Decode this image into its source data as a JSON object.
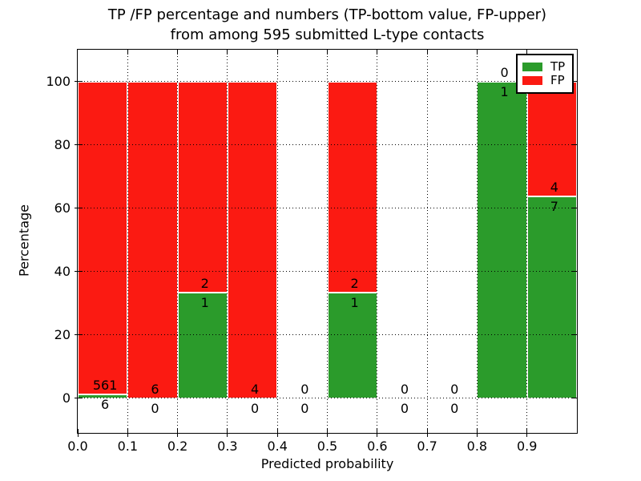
{
  "colors": {
    "tp_green": "#2b9b2b",
    "fp_red": "#fb1a12",
    "bar_edge": "#ffffff",
    "axis": "#000000",
    "grid": "#000000",
    "background": "#ffffff",
    "text": "#000000"
  },
  "chart_data": {
    "type": "bar",
    "stacked": true,
    "title": "TP /FP percentage and numbers (TP-bottom value, FP-upper)\nfrom among 595 submitted L-type contacts",
    "title_lines": [
      "TP /FP percentage and numbers (TP-bottom value, FP-upper)",
      "from among 595 submitted L-type contacts"
    ],
    "xlabel": "Predicted probability",
    "ylabel": "Percentage",
    "xlim": [
      0.0,
      1.0
    ],
    "ylim": [
      -11,
      110
    ],
    "x_tick_values": [
      0.0,
      0.1,
      0.2,
      0.3,
      0.4,
      0.5,
      0.6,
      0.7,
      0.8,
      0.9
    ],
    "x_tick_labels": [
      "0.0",
      "0.1",
      "0.2",
      "0.3",
      "0.4",
      "0.5",
      "0.6",
      "0.7",
      "0.8",
      "0.9"
    ],
    "y_ticks": [
      0,
      20,
      40,
      60,
      80,
      100
    ],
    "y_tick_labels": [
      "0",
      "20",
      "40",
      "60",
      "80",
      "100"
    ],
    "grid": {
      "style": "dotted",
      "color": "#000000",
      "drawn_over_bars": true
    },
    "legend": {
      "position": "upper-right",
      "entries": [
        {
          "label": "TP",
          "color": "#2b9b2b"
        },
        {
          "label": "FP",
          "color": "#fb1a12"
        }
      ]
    },
    "categories": [
      "0.0-0.1",
      "0.1-0.2",
      "0.2-0.3",
      "0.3-0.4",
      "0.4-0.5",
      "0.5-0.6",
      "0.6-0.7",
      "0.7-0.8",
      "0.8-0.9",
      "0.9-1.0"
    ],
    "bins": [
      {
        "x0": 0.0,
        "x1": 0.1,
        "tp": 6,
        "fp": 561,
        "tp_pct": 1.06,
        "fp_pct": 98.94
      },
      {
        "x0": 0.1,
        "x1": 0.2,
        "tp": 0,
        "fp": 6,
        "tp_pct": 0,
        "fp_pct": 100
      },
      {
        "x0": 0.2,
        "x1": 0.3,
        "tp": 1,
        "fp": 2,
        "tp_pct": 33.33,
        "fp_pct": 66.67
      },
      {
        "x0": 0.3,
        "x1": 0.4,
        "tp": 0,
        "fp": 4,
        "tp_pct": 0,
        "fp_pct": 100
      },
      {
        "x0": 0.4,
        "x1": 0.5,
        "tp": 0,
        "fp": 0,
        "tp_pct": 0,
        "fp_pct": 0
      },
      {
        "x0": 0.5,
        "x1": 0.6,
        "tp": 1,
        "fp": 2,
        "tp_pct": 33.33,
        "fp_pct": 66.67
      },
      {
        "x0": 0.6,
        "x1": 0.7,
        "tp": 0,
        "fp": 0,
        "tp_pct": 0,
        "fp_pct": 0
      },
      {
        "x0": 0.7,
        "x1": 0.8,
        "tp": 0,
        "fp": 0,
        "tp_pct": 0,
        "fp_pct": 0
      },
      {
        "x0": 0.8,
        "x1": 0.9,
        "tp": 1,
        "fp": 0,
        "tp_pct": 100,
        "fp_pct": 0
      },
      {
        "x0": 0.9,
        "x1": 1.0,
        "tp": 7,
        "fp": 4,
        "tp_pct": 63.64,
        "fp_pct": 36.36
      }
    ]
  }
}
